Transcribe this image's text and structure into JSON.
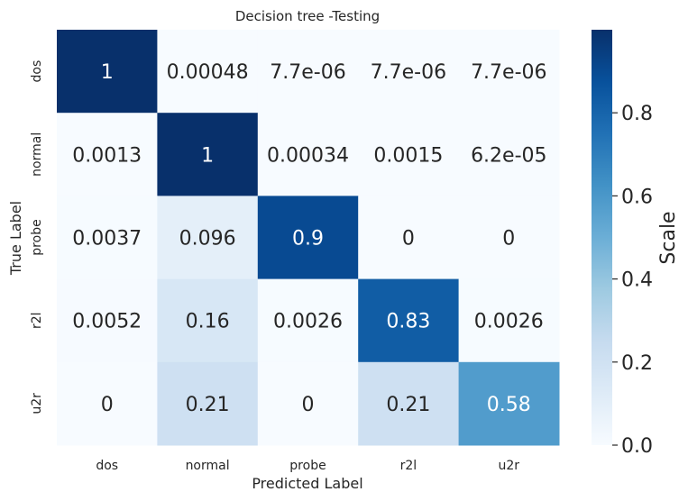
{
  "chart_data": {
    "type": "heatmap",
    "title": "Decision tree -Testing",
    "xlabel": "Predicted Label",
    "ylabel": "True Label",
    "x_categories": [
      "dos",
      "normal",
      "probe",
      "r2l",
      "u2r"
    ],
    "y_categories": [
      "dos",
      "normal",
      "probe",
      "r2l",
      "u2r"
    ],
    "values": [
      [
        1,
        0.00048,
        7.7e-06,
        7.7e-06,
        7.7e-06
      ],
      [
        0.0013,
        1,
        0.00034,
        0.0015,
        6.2e-05
      ],
      [
        0.0037,
        0.096,
        0.9,
        0,
        0
      ],
      [
        0.0052,
        0.16,
        0.0026,
        0.83,
        0.0026
      ],
      [
        0,
        0.21,
        0,
        0.21,
        0.58
      ]
    ],
    "annotations": [
      [
        "1",
        "0.00048",
        "7.7e-06",
        "7.7e-06",
        "7.7e-06"
      ],
      [
        "0.0013",
        "1",
        "0.00034",
        "0.0015",
        "6.2e-05"
      ],
      [
        "0.0037",
        "0.096",
        "0.9",
        "0",
        "0"
      ],
      [
        "0.0052",
        "0.16",
        "0.0026",
        "0.83",
        "0.0026"
      ],
      [
        "0",
        "0.21",
        "0",
        "0.21",
        "0.58"
      ]
    ],
    "colorbar": {
      "label": "Scale",
      "range": [
        0,
        1
      ],
      "ticks": [
        0.0,
        0.2,
        0.4,
        0.6,
        0.8
      ],
      "tick_labels": [
        "0.0",
        "0.2",
        "0.4",
        "0.6",
        "0.8"
      ],
      "colormap": "Blues"
    }
  }
}
